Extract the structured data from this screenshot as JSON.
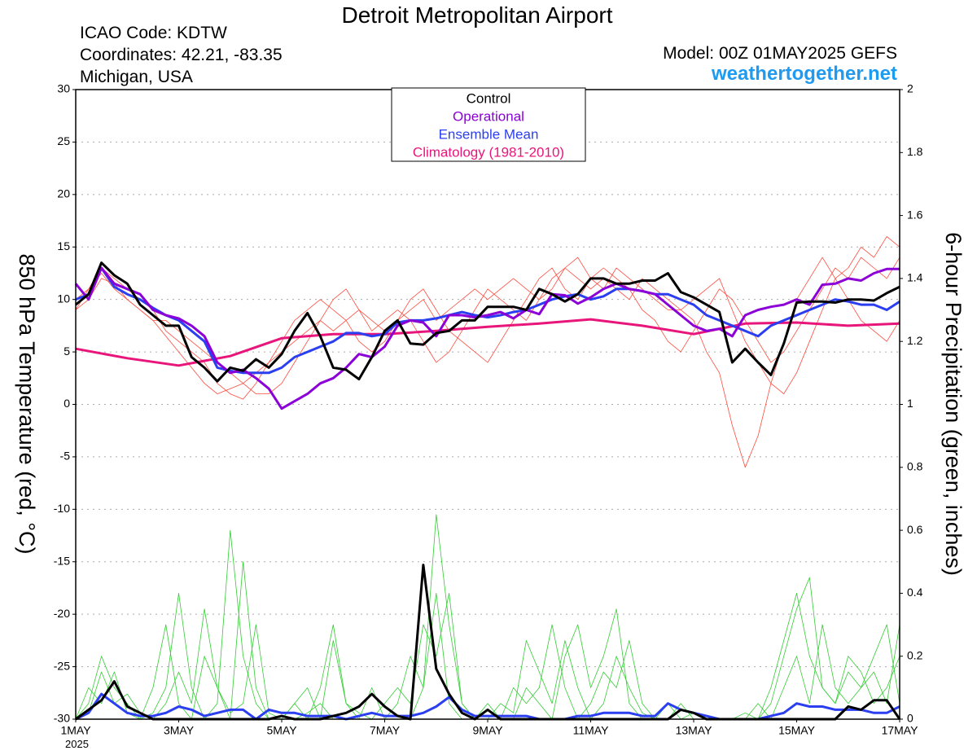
{
  "chart_data": {
    "type": "line",
    "title": "Detroit Metropolitan Airport",
    "info": [
      "ICAO Code: KDTW",
      "Coordinates: 42.21, -83.35",
      "Michigan, USA"
    ],
    "model": "Model: 00Z 01MAY2025 GEFS",
    "source": "weathertogether.net",
    "ylabel": "850 hPa Temperature (red, °C)",
    "y2label": "6-hour Precipitation (green, inches)",
    "year": "2025",
    "grid": true,
    "xlim": [
      0,
      384
    ],
    "xticks": [
      {
        "value": 0,
        "label": "1MAY"
      },
      {
        "value": 48,
        "label": "3MAY"
      },
      {
        "value": 96,
        "label": "5MAY"
      },
      {
        "value": 144,
        "label": "7MAY"
      },
      {
        "value": 192,
        "label": "9MAY"
      },
      {
        "value": 240,
        "label": "11MAY"
      },
      {
        "value": 288,
        "label": "13MAY"
      },
      {
        "value": 336,
        "label": "15MAY"
      },
      {
        "value": 384,
        "label": "17MAY"
      }
    ],
    "ylim": [
      -30,
      30
    ],
    "yticks": [
      30,
      25,
      20,
      15,
      10,
      5,
      0,
      -5,
      -10,
      -15,
      -20,
      -25,
      -30
    ],
    "y2lim": [
      0,
      2
    ],
    "y2ticks": [
      2,
      1.8,
      1.6,
      1.4,
      1.2,
      1,
      0.8,
      0.6,
      0.4,
      0.2,
      0
    ],
    "x": [
      0,
      6,
      12,
      18,
      24,
      30,
      36,
      42,
      48,
      54,
      60,
      66,
      72,
      78,
      84,
      90,
      96,
      102,
      108,
      114,
      120,
      126,
      132,
      138,
      144,
      150,
      156,
      162,
      168,
      174,
      180,
      186,
      192,
      198,
      204,
      210,
      216,
      222,
      228,
      234,
      240,
      246,
      252,
      258,
      264,
      270,
      276,
      282,
      288,
      294,
      300,
      306,
      312,
      318,
      324,
      330,
      336,
      342,
      348,
      354,
      360,
      366,
      372,
      378,
      384
    ],
    "series": [
      {
        "color": "#ff4a3d",
        "width": 0.8,
        "values": [
          9,
          11,
          12.5,
          11,
          10,
          9,
          8,
          6.5,
          5,
          3.5,
          2,
          1,
          1.5,
          2,
          3,
          4,
          5,
          6,
          7,
          8,
          7,
          8,
          9,
          8,
          7,
          8,
          9,
          10,
          8,
          9,
          10,
          11,
          10,
          11,
          12,
          11,
          10,
          12,
          13,
          12,
          11,
          12,
          11,
          10,
          12,
          11,
          10,
          9,
          8,
          5,
          3,
          -2,
          -6,
          -3,
          2,
          6,
          10,
          12,
          14,
          12,
          13,
          15,
          14,
          16,
          15
        ]
      },
      {
        "color": "#ff4a3d",
        "width": 0.8,
        "values": [
          10,
          11,
          13,
          12,
          11,
          10,
          9,
          7,
          6,
          5,
          4,
          2,
          1,
          0.5,
          2,
          4,
          6,
          8,
          9,
          10,
          9,
          8,
          6,
          5,
          6,
          8,
          10,
          11,
          9,
          7,
          6,
          5,
          4,
          6,
          8,
          10,
          12,
          13,
          11,
          10,
          12,
          13,
          12,
          11,
          9,
          8,
          6,
          5,
          7,
          9,
          11,
          10,
          8,
          6,
          4,
          5,
          7,
          9,
          11,
          13,
          12,
          14,
          13,
          12,
          14
        ]
      },
      {
        "color": "#ff4a3d",
        "width": 0.8,
        "values": [
          9,
          10,
          12,
          11.5,
          10,
          9,
          8,
          8,
          7,
          6,
          5,
          4,
          3,
          2,
          1,
          1,
          2,
          4,
          6,
          8,
          10,
          11,
          9,
          7,
          8,
          9,
          8,
          6,
          4,
          5,
          7,
          9,
          11,
          10,
          9,
          8,
          10,
          11,
          13,
          14,
          12,
          11,
          13,
          12,
          11,
          10,
          9,
          9,
          10,
          11,
          12,
          9,
          6,
          4,
          2,
          1,
          3,
          6,
          9,
          12,
          10,
          8,
          7,
          6,
          8
        ]
      },
      {
        "color": "#33cc33",
        "width": 0.8,
        "axis": "y2",
        "values": [
          0,
          0.05,
          0.2,
          0.1,
          0.05,
          0,
          0.02,
          0.1,
          0.4,
          0.1,
          0,
          0.05,
          0.6,
          0.2,
          0.05,
          0,
          0,
          0,
          0.02,
          0.05,
          0,
          0,
          0,
          0.1,
          0,
          0,
          0,
          0.1,
          0.65,
          0.3,
          0.05,
          0,
          0,
          0,
          0,
          0.1,
          0.05,
          0,
          0.2,
          0.3,
          0.1,
          0.2,
          0.35,
          0.05,
          0,
          0,
          0,
          0.05,
          0,
          0,
          0,
          0,
          0,
          0,
          0.05,
          0.2,
          0.35,
          0.45,
          0.1,
          0.05,
          0.15,
          0.1,
          0.2,
          0.3,
          0.05
        ]
      },
      {
        "color": "#33cc33",
        "width": 0.8,
        "axis": "y2",
        "values": [
          0,
          0.1,
          0.05,
          0.15,
          0.02,
          0,
          0.1,
          0.3,
          0.05,
          0,
          0.2,
          0.1,
          0,
          0.5,
          0.1,
          0,
          0,
          0.05,
          0.1,
          0,
          0.25,
          0.05,
          0,
          0,
          0,
          0.05,
          0.2,
          0.1,
          0.4,
          0.05,
          0,
          0,
          0.05,
          0,
          0.1,
          0.05,
          0.1,
          0.3,
          0.1,
          0,
          0.05,
          0.15,
          0.1,
          0.25,
          0.05,
          0,
          0,
          0,
          0,
          0,
          0,
          0,
          0.02,
          0,
          0.1,
          0.25,
          0.4,
          0.2,
          0.1,
          0.05,
          0.2,
          0.15,
          0.05,
          0.1,
          0.2
        ]
      },
      {
        "color": "#33cc33",
        "width": 0.8,
        "axis": "y2",
        "values": [
          0,
          0.02,
          0.15,
          0.05,
          0.08,
          0.02,
          0,
          0.05,
          0.15,
          0.05,
          0.35,
          0.1,
          0.02,
          0.05,
          0.3,
          0.02,
          0,
          0.05,
          0,
          0.1,
          0.3,
          0.05,
          0.02,
          0,
          0.05,
          0.1,
          0.05,
          0.3,
          0.2,
          0.4,
          0.05,
          0,
          0,
          0.05,
          0.02,
          0.25,
          0.15,
          0.05,
          0.25,
          0.1,
          0,
          0.05,
          0.2,
          0.1,
          0.02,
          0,
          0.05,
          0,
          0.02,
          0,
          0,
          0,
          0,
          0.05,
          0,
          0.1,
          0.2,
          0.05,
          0.3,
          0.1,
          0.05,
          0.1,
          0.15,
          0.05,
          0.3
        ]
      },
      {
        "name": "Climatology (1981-2010)",
        "color": "#e8157a",
        "width": 3,
        "x": [
          0,
          24,
          48,
          72,
          96,
          120,
          144,
          168,
          192,
          216,
          240,
          264,
          288,
          312,
          336,
          360,
          384
        ],
        "values": [
          5.3,
          4.4,
          3.7,
          4.6,
          6.3,
          6.7,
          6.7,
          7,
          7.4,
          7.7,
          8.1,
          7.5,
          6.7,
          7.7,
          7.8,
          7.5,
          7.7
        ]
      },
      {
        "name": "Ensemble Mean",
        "color": "#2b3ff0",
        "width": 3,
        "values": [
          10,
          10.5,
          13,
          11.2,
          10.5,
          10,
          9.2,
          8.5,
          8,
          7,
          6,
          3.5,
          3.2,
          3,
          3,
          3,
          3.5,
          4.5,
          5,
          5.5,
          6,
          6.8,
          6.8,
          6.5,
          6.7,
          7.8,
          8,
          8,
          8.2,
          8.5,
          8.8,
          8.5,
          8.3,
          8.5,
          8.8,
          9,
          9.5,
          10,
          10.3,
          10.5,
          10,
          10.3,
          11,
          11,
          10.8,
          10.5,
          10.5,
          10,
          9.5,
          8.5,
          8,
          7.5,
          7,
          6.5,
          7.5,
          8,
          8.5,
          9,
          9.5,
          10,
          9.8,
          9.5,
          9.5,
          9,
          9.8
        ]
      },
      {
        "name": "Ensemble Mean",
        "legend": false,
        "color": "#2b3ff0",
        "width": 3,
        "axis": "y2",
        "values": [
          0,
          0.02,
          0.08,
          0.05,
          0.02,
          0.01,
          0.01,
          0.02,
          0.04,
          0.03,
          0.01,
          0.02,
          0.03,
          0.03,
          0,
          0.03,
          0.02,
          0.02,
          0.01,
          0.01,
          0.01,
          0,
          0.01,
          0.02,
          0.01,
          0.01,
          0.01,
          0.02,
          0.04,
          0.07,
          0.03,
          0.01,
          0.01,
          0.01,
          0.01,
          0.01,
          0,
          0,
          0,
          0.01,
          0.01,
          0.02,
          0.02,
          0.02,
          0.01,
          0.01,
          0.05,
          0.03,
          0.02,
          0.01,
          0,
          0,
          0,
          0,
          0.01,
          0.02,
          0.05,
          0.04,
          0.04,
          0.03,
          0.03,
          0.03,
          0.02,
          0.02,
          0.04
        ]
      },
      {
        "name": "Operational",
        "color": "#8b00d6",
        "width": 3,
        "values": [
          11.5,
          10,
          13,
          11.5,
          11,
          10.5,
          9,
          8.5,
          8.2,
          7.5,
          6.5,
          4,
          3,
          3.3,
          2.5,
          1.5,
          -0.4,
          0.3,
          1,
          2,
          2.5,
          3.5,
          4.8,
          4.5,
          5.5,
          7.5,
          8,
          7.8,
          6.5,
          8.5,
          8.5,
          8.3,
          8.5,
          8.8,
          8.2,
          9,
          8.6,
          10.5,
          10.4,
          9.6,
          10.2,
          11,
          11.5,
          11,
          10.8,
          10.5,
          9.5,
          8.5,
          7.5,
          7,
          7.2,
          6.5,
          8.5,
          9,
          9.3,
          9.5,
          10,
          9.5,
          11.4,
          11.5,
          12,
          11.8,
          12.5,
          12.9,
          12.9
        ]
      },
      {
        "name": "Control",
        "color": "#000000",
        "width": 3,
        "values": [
          9.5,
          10.5,
          13.5,
          12.3,
          11.5,
          9.5,
          8.5,
          7.5,
          7.5,
          4.5,
          3.5,
          2.2,
          3.5,
          3.2,
          4.3,
          3.5,
          4.8,
          7,
          8.7,
          6.5,
          3.5,
          3.3,
          2.4,
          4.5,
          7,
          8,
          5.8,
          5.7,
          6.8,
          7,
          8,
          8,
          9.3,
          9.3,
          9.3,
          9,
          11,
          10.5,
          9.8,
          10.5,
          12,
          12,
          11.5,
          11.5,
          11.8,
          11.8,
          12.5,
          10.7,
          10.2,
          9.5,
          8.8,
          4,
          5.3,
          4,
          2.8,
          5.8,
          9.7,
          9.8,
          9.8,
          9.7,
          10,
          10,
          9.9,
          10.6,
          11.2
        ]
      },
      {
        "name": "Control",
        "legend": false,
        "color": "#000000",
        "width": 3,
        "axis": "y2",
        "values": [
          0,
          0.03,
          0.06,
          0.12,
          0.04,
          0.02,
          0,
          0,
          0,
          0,
          0,
          0,
          0,
          0,
          0,
          0,
          0.01,
          0,
          0,
          0,
          0.01,
          0.02,
          0.04,
          0.08,
          0.04,
          0.01,
          0,
          0.49,
          0.16,
          0.08,
          0.02,
          0,
          0.03,
          0,
          0,
          0,
          0,
          0,
          0,
          0,
          0,
          0,
          0,
          0,
          0,
          0,
          0,
          0.03,
          0.02,
          0,
          0,
          0,
          0,
          0,
          0,
          0,
          0,
          0,
          0,
          0,
          0.04,
          0.03,
          0.06,
          0.06,
          0
        ]
      }
    ]
  }
}
